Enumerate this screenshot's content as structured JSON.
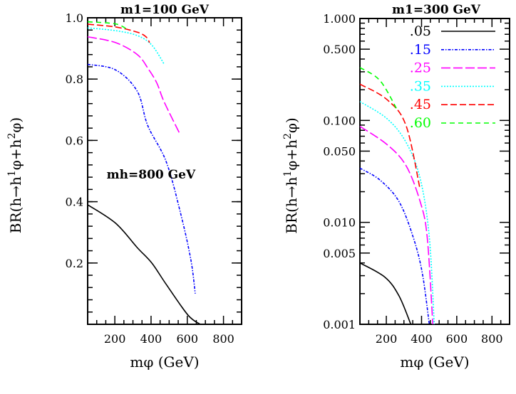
{
  "chart_data": [
    {
      "type": "line",
      "title": "m1=100 GeV",
      "title_parts": {
        "main": "m",
        "sub": "1",
        "rest": "=100  GeV"
      },
      "xlabel": "mφ (GeV)",
      "xlabel_parts": {
        "main": "m",
        "sub": "φ",
        "rest": " (GeV)"
      },
      "ylabel": "BR(h→h1φ+h2φ)",
      "ylabel_parts": [
        "BR(h→h",
        "1",
        "φ+h",
        "2",
        "φ)"
      ],
      "yscale": "linear",
      "xlim": [
        50,
        900
      ],
      "ylim": [
        0,
        1
      ],
      "xticks": [
        200,
        400,
        600,
        800
      ],
      "xtick_labels": [
        "200",
        "400",
        "600",
        "800"
      ],
      "yticks": [
        0.2,
        0.4,
        0.6,
        0.8,
        1.0
      ],
      "ytick_labels": [
        "0.2",
        "0.4",
        "0.6",
        "0.8",
        "1.0"
      ],
      "grid": false,
      "annotation": {
        "text": "mh=800 GeV",
        "main": "m",
        "sub": "h",
        "rest": "=800  GeV",
        "x": 400,
        "y": 0.49
      },
      "series": [
        {
          "name": ".05",
          "color": "#000000",
          "style": "solid",
          "x": [
            50,
            204,
            324,
            404,
            484,
            604,
            672
          ],
          "y": [
            0.39,
            0.33,
            0.25,
            0.2,
            0.13,
            0.03,
            0.0
          ]
        },
        {
          "name": ".15",
          "color": "#0000ff",
          "style": "dash-dot",
          "x": [
            50,
            204,
            324,
            382,
            484,
            564,
            620,
            644
          ],
          "y": [
            0.848,
            0.83,
            0.76,
            0.648,
            0.53,
            0.36,
            0.21,
            0.1
          ]
        },
        {
          "name": ".25",
          "color": "#ff00ff",
          "style": "long-dash",
          "x": [
            50,
            204,
            324,
            384,
            432,
            472,
            560
          ],
          "y": [
            0.938,
            0.919,
            0.88,
            0.834,
            0.787,
            0.726,
            0.62
          ]
        },
        {
          "name": ".35",
          "color": "#00ffff",
          "style": "dotted",
          "x": [
            50,
            204,
            324,
            404,
            472
          ],
          "y": [
            0.967,
            0.958,
            0.942,
            0.911,
            0.849
          ]
        },
        {
          "name": ".45",
          "color": "#ff0000",
          "style": "dashed",
          "x": [
            50,
            204,
            324,
            372,
            392
          ],
          "y": [
            0.979,
            0.97,
            0.953,
            0.938,
            0.919
          ]
        },
        {
          "name": ".60",
          "color": "#00ff00",
          "style": "short-dash",
          "x": [
            50,
            204,
            272
          ],
          "y": [
            0.987,
            0.98,
            0.961
          ]
        }
      ]
    },
    {
      "type": "line",
      "title": "m1=300 GeV",
      "title_parts": {
        "main": "m",
        "sub": "1",
        "rest": "=300  GeV"
      },
      "xlabel": "mφ (GeV)",
      "xlabel_parts": {
        "main": "m",
        "sub": "φ",
        "rest": " (GeV)"
      },
      "ylabel": "BR(h→h1φ+h2φ)",
      "ylabel_parts": [
        "BR(h→h",
        "1",
        "φ+h",
        "2",
        "φ)"
      ],
      "yscale": "log",
      "xlim": [
        50,
        900
      ],
      "ylim": [
        0.001,
        1.0
      ],
      "xticks": [
        200,
        400,
        600,
        800
      ],
      "xtick_labels": [
        "200",
        "400",
        "600",
        "800"
      ],
      "yticks": [
        0.001,
        0.005,
        0.01,
        0.05,
        0.1,
        0.5,
        1.0
      ],
      "ytick_labels": [
        "0.001",
        "0.005",
        "0.010",
        "0.050",
        "0.100",
        "0.500",
        "1.000"
      ],
      "grid": false,
      "legend_placement": "top-right",
      "series": [
        {
          "name": ".05",
          "color": "#000000",
          "style": "solid",
          "x": [
            50,
            192,
            272,
            339
          ],
          "y": [
            0.004,
            0.0029,
            0.0019,
            0.001
          ]
        },
        {
          "name": ".15",
          "color": "#0000ff",
          "style": "dash-dot",
          "x": [
            50,
            164,
            272,
            352,
            404,
            444
          ],
          "y": [
            0.034,
            0.026,
            0.016,
            0.0072,
            0.0032,
            0.001
          ]
        },
        {
          "name": ".25",
          "color": "#ff00ff",
          "style": "long-dash",
          "x": [
            50,
            204,
            312,
            392,
            432,
            464
          ],
          "y": [
            0.0875,
            0.058,
            0.036,
            0.016,
            0.0072,
            0.001
          ]
        },
        {
          "name": ".35",
          "color": "#00ffff",
          "style": "dotted",
          "x": [
            50,
            204,
            312,
            392,
            444,
            472
          ],
          "y": [
            0.153,
            0.104,
            0.061,
            0.027,
            0.0072,
            0.001
          ]
        },
        {
          "name": ".45",
          "color": "#ff0000",
          "style": "dashed",
          "x": [
            50,
            204,
            312,
            392
          ],
          "y": [
            0.227,
            0.16,
            0.089,
            0.021
          ]
        },
        {
          "name": ".60",
          "color": "#00ff00",
          "style": "short-dash",
          "x": [
            50,
            164,
            264
          ],
          "y": [
            0.33,
            0.246,
            0.125
          ]
        }
      ]
    }
  ]
}
